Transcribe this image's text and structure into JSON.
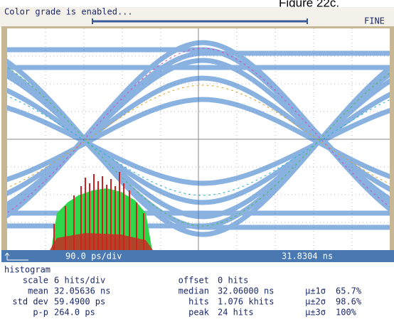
{
  "figure_label": "Figure 22c.",
  "status": {
    "message": "Color grade is enabled...",
    "mode": "FINE"
  },
  "display": {
    "timebase": "90.0 ps/div",
    "position": "31.8304 ns"
  },
  "histogram": {
    "title": "histogram",
    "rows": [
      [
        {
          "label": "scale",
          "value": "6 hits/div"
        },
        {
          "label": "offset",
          "value": "0 hits"
        }
      ],
      [
        {
          "label": "mean",
          "value": "32.05636 ns"
        },
        {
          "label": "median",
          "value": "32.06000 ns"
        },
        {
          "label": "μ±1σ",
          "value": "65.7%"
        }
      ],
      [
        {
          "label": "std dev",
          "value": "59.4900 ps"
        },
        {
          "label": "hits",
          "value": "1.076 khits"
        },
        {
          "label": "μ±2σ",
          "value": "98.6%"
        }
      ],
      [
        {
          "label": "p-p",
          "value": "264.0 ps"
        },
        {
          "label": "peak",
          "value": "24 hits"
        },
        {
          "label": "μ±3σ",
          "value": "100%"
        }
      ]
    ]
  }
}
